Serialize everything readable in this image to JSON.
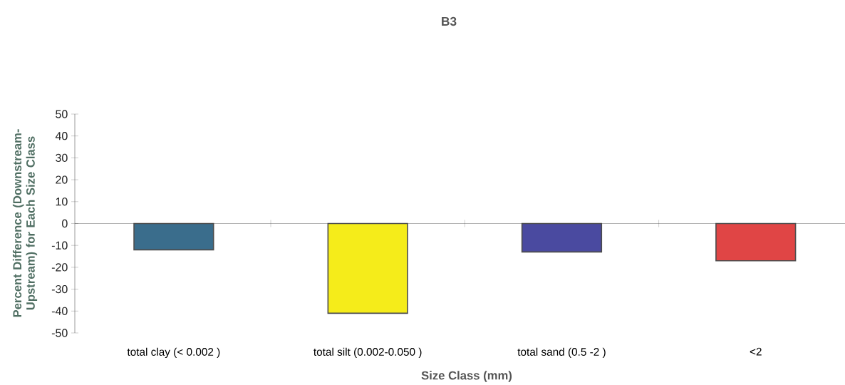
{
  "chart_data": {
    "type": "bar",
    "title": "B3",
    "xlabel": "Size Class (mm)",
    "ylabel": "Percent Difference (Downstream-Upstream) for Each Size Class",
    "categories": [
      "total clay (< 0.002 )",
      "total silt (0.002-0.050 )",
      "total sand (0.5 -2 )",
      "<2"
    ],
    "values": [
      -12,
      -41,
      -13,
      -17
    ],
    "colors": [
      "#3a6d8c",
      "#f5ec1a",
      "#4a4aa0",
      "#e04545"
    ],
    "ylim": [
      -50,
      50
    ],
    "yticks": [
      -50,
      -40,
      -30,
      -20,
      -10,
      0,
      10,
      20,
      30,
      40,
      50
    ]
  }
}
